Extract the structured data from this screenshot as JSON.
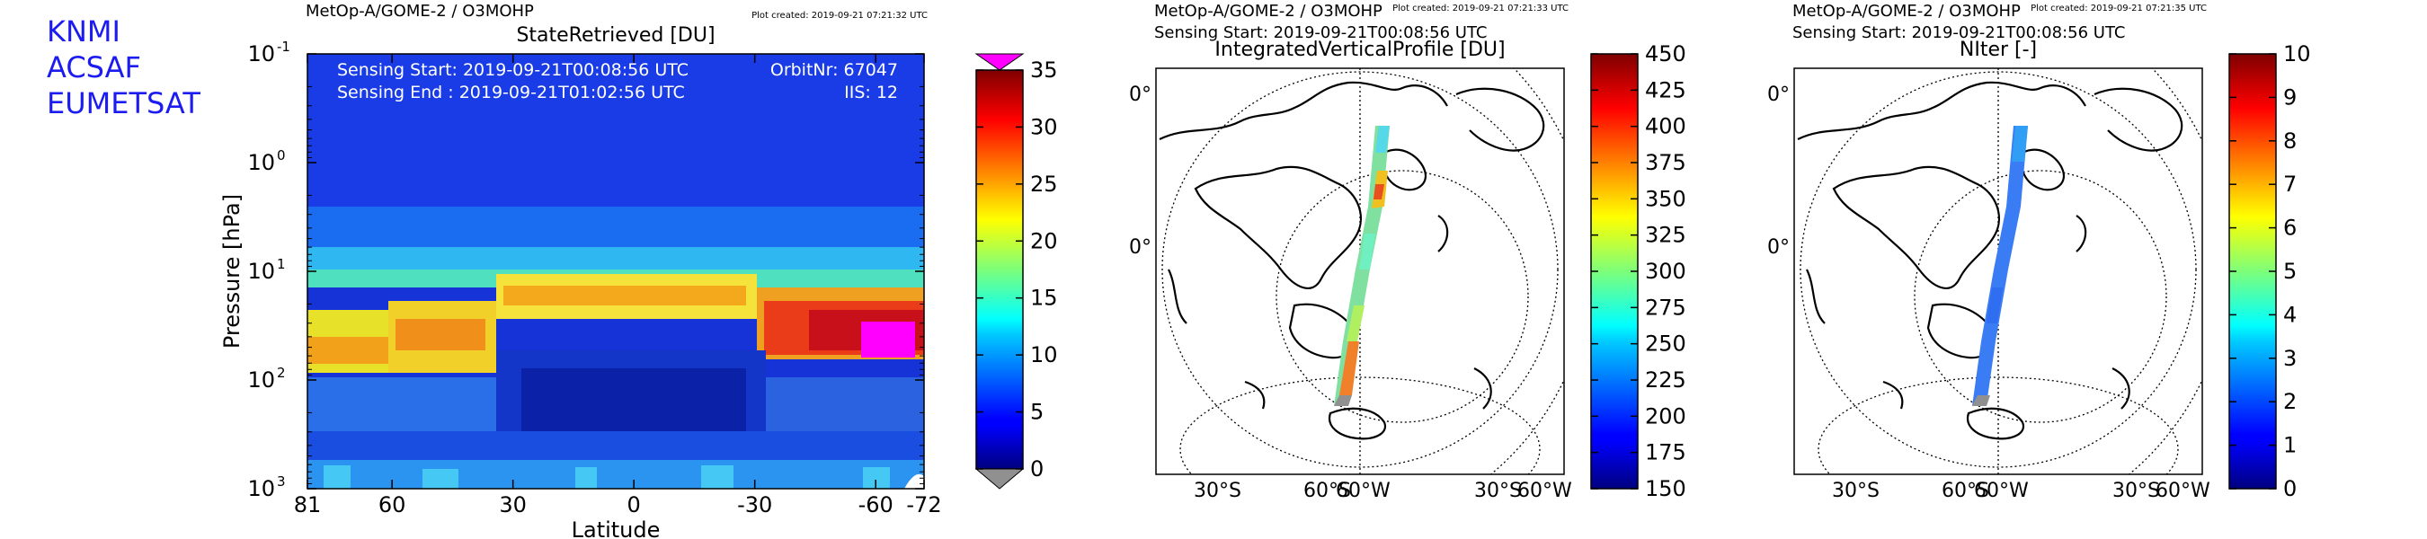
{
  "logo": {
    "lines": [
      "KNMI",
      "ACSAF",
      "EUMETSAT"
    ],
    "color": "#1c1cf0"
  },
  "chart_data": [
    {
      "type": "heatmap",
      "header": "MetOp-A/GOME-2 / O3MOHP",
      "plot_created": "Plot created: 2019-09-21 07:21:32 UTC",
      "title": "StateRetrieved [DU]",
      "xlabel": "Latitude",
      "ylabel": "Pressure [hPa]",
      "x_ticks": [
        "81",
        "60",
        "30",
        "0",
        "-30",
        "-60",
        "-72"
      ],
      "x_tick_values": [
        81,
        60,
        30,
        0,
        -30,
        -60,
        -72
      ],
      "xlim": [
        81,
        -72
      ],
      "y_scale": "log",
      "ylim": [
        1000,
        0.1
      ],
      "y_ticks": [
        {
          "base": "10",
          "exp": "-1",
          "value": 0.1
        },
        {
          "base": "10",
          "exp": "0",
          "value": 1
        },
        {
          "base": "10",
          "exp": "1",
          "value": 10
        },
        {
          "base": "10",
          "exp": "2",
          "value": 100
        },
        {
          "base": "10",
          "exp": "3",
          "value": 1000
        }
      ],
      "info": {
        "sensing_start": "Sensing Start: 2019-09-21T00:08:56 UTC",
        "sensing_end": "Sensing End  : 2019-09-21T01:02:56 UTC",
        "orbit": "OrbitNr: 67047",
        "iis": "IIS: 12"
      },
      "colorbar": {
        "ticks": [
          "0",
          "5",
          "10",
          "15",
          "20",
          "25",
          "30",
          "35"
        ],
        "min": 0,
        "max": 35,
        "over_color": "#ff00ff",
        "under_color": "#909090"
      },
      "grid": false
    },
    {
      "type": "map",
      "header": "MetOp-A/GOME-2 / O3MOHP",
      "sensing_start": "Sensing Start: 2019-09-21T00:08:56 UTC",
      "plot_created": "Plot created: 2019-09-21 07:21:33 UTC",
      "title": "IntegratedVerticalProfile [DU]",
      "projection": "orthographic",
      "lon_labels": [
        "30°S",
        "60°S",
        "60°W",
        "30°S",
        "60°W"
      ],
      "lat_labels": [
        "0°",
        "0°"
      ],
      "colorbar": {
        "ticks": [
          "150",
          "175",
          "200",
          "225",
          "250",
          "275",
          "300",
          "325",
          "350",
          "375",
          "400",
          "425",
          "450"
        ],
        "min": 150,
        "max": 450
      },
      "swath_values": [
        {
          "lat": 81,
          "value": 285
        },
        {
          "lat": 60,
          "value": 300
        },
        {
          "lat": 45,
          "value": 360
        },
        {
          "lat": 30,
          "value": 290
        },
        {
          "lat": 0,
          "value": 275
        },
        {
          "lat": -30,
          "value": 340
        },
        {
          "lat": -55,
          "value": 390
        },
        {
          "lat": -72,
          "value": 330
        }
      ]
    },
    {
      "type": "map",
      "header": "MetOp-A/GOME-2 / O3MOHP",
      "sensing_start": "Sensing Start: 2019-09-21T00:08:56 UTC",
      "plot_created": "Plot created: 2019-09-21 07:21:35 UTC",
      "title": "NIter [-]",
      "projection": "orthographic",
      "lon_labels": [
        "30°S",
        "60°S",
        "60°W",
        "30°S",
        "60°W"
      ],
      "lat_labels": [
        "0°",
        "0°"
      ],
      "colorbar": {
        "ticks": [
          "0",
          "1",
          "2",
          "3",
          "4",
          "5",
          "6",
          "7",
          "8",
          "9",
          "10"
        ],
        "min": 0,
        "max": 10
      },
      "swath_values": [
        {
          "lat": 81,
          "value": 2.6
        },
        {
          "lat": 60,
          "value": 2.2
        },
        {
          "lat": 30,
          "value": 2.0
        },
        {
          "lat": 0,
          "value": 2.0
        },
        {
          "lat": -30,
          "value": 2.2
        },
        {
          "lat": -60,
          "value": 2.0
        },
        {
          "lat": -72,
          "value": 1.8
        }
      ]
    }
  ]
}
